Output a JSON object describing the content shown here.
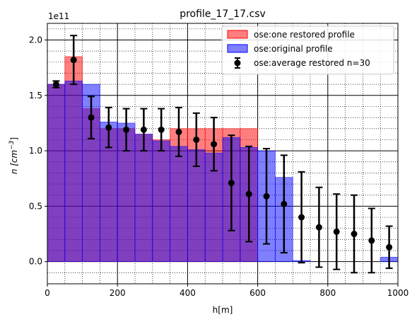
{
  "chart_data": {
    "type": "bar",
    "title": "profile_17_17.csv",
    "xlabel": "h[m]",
    "ylabel_base": "n [cm",
    "ylabel_exp": "−3",
    "ylabel_close": "]",
    "offset_text": "1e11",
    "xlim": [
      0,
      1000
    ],
    "ylim": [
      -0.2,
      2.15
    ],
    "y_scale": "1e11",
    "grid": "major solid black, minor dotted black",
    "legend_position": "top-right",
    "x_ticks": [
      0,
      200,
      400,
      600,
      800,
      1000
    ],
    "x_tick_labels": [
      "0",
      "200",
      "400",
      "600",
      "800",
      "1000"
    ],
    "y_ticks": [
      0.0,
      0.5,
      1.0,
      1.5,
      2.0
    ],
    "y_tick_labels": [
      "0.0",
      "0.5",
      "1.0",
      "1.5",
      "2.0"
    ],
    "bin_edges": [
      0,
      50,
      100,
      150,
      200,
      250,
      300,
      350,
      400,
      450,
      500,
      550,
      600,
      650,
      700,
      750,
      800,
      850,
      900,
      950,
      1000
    ],
    "series": [
      {
        "name": "ose:one restored profile",
        "kind": "bar",
        "color": "#ff0000",
        "alpha": 0.5,
        "values": [
          1.6,
          1.85,
          1.38,
          1.2,
          1.2,
          1.15,
          1.1,
          1.2,
          1.2,
          1.2,
          1.2,
          1.2,
          0.0,
          0.0,
          0.0,
          0.0,
          0.0,
          0.0,
          0.0,
          0.0
        ]
      },
      {
        "name": "ose:original profile",
        "kind": "bar",
        "color": "#0000ff",
        "alpha": 0.5,
        "values": [
          1.6,
          1.63,
          1.6,
          1.26,
          1.25,
          1.15,
          1.09,
          1.04,
          1.01,
          0.98,
          1.12,
          1.03,
          1.0,
          0.76,
          0.01,
          0.0,
          0.0,
          0.0,
          0.0,
          0.04
        ]
      },
      {
        "name": "ose:average restored n=30",
        "kind": "errorbar",
        "color": "#000000",
        "x": [
          25,
          75,
          125,
          175,
          225,
          275,
          325,
          375,
          425,
          475,
          525,
          575,
          625,
          675,
          725,
          775,
          825,
          875,
          925,
          975
        ],
        "values": [
          1.6,
          1.82,
          1.3,
          1.21,
          1.19,
          1.19,
          1.19,
          1.17,
          1.1,
          1.06,
          0.71,
          0.61,
          0.59,
          0.52,
          0.4,
          0.31,
          0.27,
          0.25,
          0.19,
          0.13
        ],
        "errors": [
          0.03,
          0.22,
          0.19,
          0.18,
          0.19,
          0.19,
          0.19,
          0.22,
          0.24,
          0.24,
          0.43,
          0.43,
          0.43,
          0.44,
          0.41,
          0.36,
          0.34,
          0.35,
          0.29,
          0.19
        ]
      }
    ]
  }
}
